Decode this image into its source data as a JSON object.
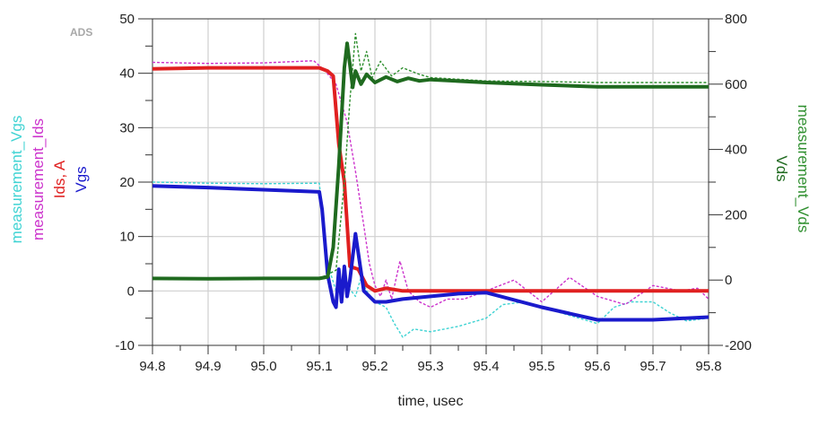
{
  "chart_data": {
    "type": "line",
    "watermark": "ADS",
    "xlabel": "time, usec",
    "xlim": [
      94.8,
      95.8
    ],
    "xticks": [
      "94.8",
      "94.9",
      "95.0",
      "95.1",
      "95.2",
      "95.3",
      "95.4",
      "95.5",
      "95.6",
      "95.7",
      "95.8"
    ],
    "ylim_left": [
      -10,
      50
    ],
    "yticks_left": [
      "-10",
      "0",
      "10",
      "20",
      "30",
      "40",
      "50"
    ],
    "ylim_right": [
      -200,
      800
    ],
    "yticks_right": [
      "-200",
      "0",
      "200",
      "400",
      "600",
      "800"
    ],
    "grid": true,
    "left_labels": [
      {
        "text": "measurement_Vgs",
        "color": "#3fd3d3"
      },
      {
        "text": "measurement_Ids",
        "color": "#cc33cc"
      },
      {
        "text": "Ids, A",
        "color": "#e02020"
      },
      {
        "text": "Vgs",
        "color": "#1a1acc"
      }
    ],
    "right_labels": [
      {
        "text": "measurement_Vds",
        "color": "#2f8f2f"
      },
      {
        "text": "Vds",
        "color": "#1f6a1f"
      }
    ],
    "series": [
      {
        "name": "measurement_Vgs",
        "axis": "left",
        "color": "#3fd3d3",
        "style": "dashed",
        "points": [
          [
            94.8,
            20
          ],
          [
            94.9,
            19.8
          ],
          [
            95.0,
            19.7
          ],
          [
            95.1,
            19.8
          ],
          [
            95.105,
            15
          ],
          [
            95.115,
            5
          ],
          [
            95.13,
            0
          ],
          [
            95.15,
            1
          ],
          [
            95.165,
            -1
          ],
          [
            95.175,
            2.5
          ],
          [
            95.185,
            0
          ],
          [
            95.2,
            -2
          ],
          [
            95.22,
            -3
          ],
          [
            95.235,
            -6
          ],
          [
            95.25,
            -8.5
          ],
          [
            95.27,
            -7
          ],
          [
            95.3,
            -7.5
          ],
          [
            95.35,
            -6.5
          ],
          [
            95.4,
            -5
          ],
          [
            95.43,
            -2.5
          ],
          [
            95.47,
            -2
          ],
          [
            95.5,
            -3
          ],
          [
            95.55,
            -4.5
          ],
          [
            95.6,
            -6
          ],
          [
            95.63,
            -3
          ],
          [
            95.66,
            -2
          ],
          [
            95.7,
            -2
          ],
          [
            95.73,
            -4
          ],
          [
            95.76,
            -5.5
          ],
          [
            95.8,
            -5
          ]
        ]
      },
      {
        "name": "measurement_Ids",
        "axis": "left",
        "color": "#cc33cc",
        "style": "dashed",
        "points": [
          [
            94.8,
            42
          ],
          [
            94.9,
            41.8
          ],
          [
            95.0,
            41.9
          ],
          [
            95.09,
            42.3
          ],
          [
            95.11,
            40.5
          ],
          [
            95.13,
            38
          ],
          [
            95.15,
            31
          ],
          [
            95.165,
            22
          ],
          [
            95.18,
            12
          ],
          [
            95.19,
            5
          ],
          [
            95.2,
            1
          ],
          [
            95.21,
            -1
          ],
          [
            95.22,
            2
          ],
          [
            95.23,
            -1.5
          ],
          [
            95.245,
            5.5
          ],
          [
            95.26,
            0
          ],
          [
            95.28,
            -2
          ],
          [
            95.3,
            -3
          ],
          [
            95.33,
            -1.5
          ],
          [
            95.36,
            -1.5
          ],
          [
            95.4,
            0
          ],
          [
            95.45,
            2
          ],
          [
            95.5,
            -2
          ],
          [
            95.55,
            2.5
          ],
          [
            95.6,
            -1
          ],
          [
            95.65,
            -2.5
          ],
          [
            95.7,
            1
          ],
          [
            95.75,
            0
          ],
          [
            95.78,
            0.5
          ],
          [
            95.8,
            -1.5
          ]
        ]
      },
      {
        "name": "Ids, A",
        "axis": "left",
        "color": "#e02020",
        "style": "solid",
        "points": [
          [
            94.8,
            40.8
          ],
          [
            94.9,
            41
          ],
          [
            95.0,
            41
          ],
          [
            95.1,
            41
          ],
          [
            95.115,
            40.4
          ],
          [
            95.125,
            39.5
          ],
          [
            95.135,
            27
          ],
          [
            95.145,
            20
          ],
          [
            95.155,
            4.5
          ],
          [
            95.17,
            4
          ],
          [
            95.185,
            1
          ],
          [
            95.2,
            0
          ],
          [
            95.22,
            0.5
          ],
          [
            95.25,
            0
          ],
          [
            95.3,
            0
          ],
          [
            95.4,
            0
          ],
          [
            95.5,
            0
          ],
          [
            95.6,
            0
          ],
          [
            95.7,
            0
          ],
          [
            95.8,
            0
          ]
        ]
      },
      {
        "name": "Vgs",
        "axis": "left",
        "color": "#1a1acc",
        "style": "solid",
        "points": [
          [
            94.8,
            19.3
          ],
          [
            94.9,
            19
          ],
          [
            95.0,
            18.6
          ],
          [
            95.1,
            18.2
          ],
          [
            95.105,
            15
          ],
          [
            95.115,
            3
          ],
          [
            95.125,
            -2
          ],
          [
            95.13,
            -3
          ],
          [
            95.135,
            4
          ],
          [
            95.14,
            -2
          ],
          [
            95.145,
            4.5
          ],
          [
            95.15,
            -1
          ],
          [
            95.155,
            2
          ],
          [
            95.165,
            10.5
          ],
          [
            95.18,
            0
          ],
          [
            95.2,
            -2
          ],
          [
            95.22,
            -2
          ],
          [
            95.25,
            -1.5
          ],
          [
            95.3,
            -1
          ],
          [
            95.35,
            -0.5
          ],
          [
            95.4,
            -0.3
          ],
          [
            95.5,
            -3
          ],
          [
            95.6,
            -5.3
          ],
          [
            95.7,
            -5.3
          ],
          [
            95.8,
            -4.8
          ]
        ]
      },
      {
        "name": "measurement_Vds",
        "axis": "right",
        "color": "#2f8f2f",
        "style": "dashed",
        "points": [
          [
            94.8,
            5
          ],
          [
            94.9,
            5
          ],
          [
            95.0,
            5
          ],
          [
            95.1,
            5
          ],
          [
            95.13,
            30
          ],
          [
            95.145,
            300
          ],
          [
            95.155,
            550
          ],
          [
            95.165,
            755
          ],
          [
            95.175,
            640
          ],
          [
            95.185,
            700
          ],
          [
            95.195,
            620
          ],
          [
            95.21,
            670
          ],
          [
            95.23,
            625
          ],
          [
            95.25,
            650
          ],
          [
            95.28,
            630
          ],
          [
            95.3,
            620
          ],
          [
            95.4,
            610
          ],
          [
            95.5,
            608
          ],
          [
            95.6,
            605
          ],
          [
            95.7,
            605
          ],
          [
            95.8,
            605
          ]
        ]
      },
      {
        "name": "Vds",
        "axis": "right",
        "color": "#1f6a1f",
        "style": "solid",
        "points": [
          [
            94.8,
            5
          ],
          [
            94.9,
            4
          ],
          [
            95.0,
            5
          ],
          [
            95.1,
            5
          ],
          [
            95.115,
            10
          ],
          [
            95.125,
            100
          ],
          [
            95.135,
            350
          ],
          [
            95.145,
            650
          ],
          [
            95.15,
            725
          ],
          [
            95.155,
            660
          ],
          [
            95.16,
            590
          ],
          [
            95.165,
            640
          ],
          [
            95.175,
            600
          ],
          [
            95.185,
            630
          ],
          [
            95.2,
            605
          ],
          [
            95.22,
            622
          ],
          [
            95.24,
            608
          ],
          [
            95.26,
            618
          ],
          [
            95.28,
            610
          ],
          [
            95.3,
            614
          ],
          [
            95.4,
            605
          ],
          [
            95.5,
            598
          ],
          [
            95.6,
            592
          ],
          [
            95.7,
            592
          ],
          [
            95.8,
            592
          ]
        ]
      }
    ]
  }
}
